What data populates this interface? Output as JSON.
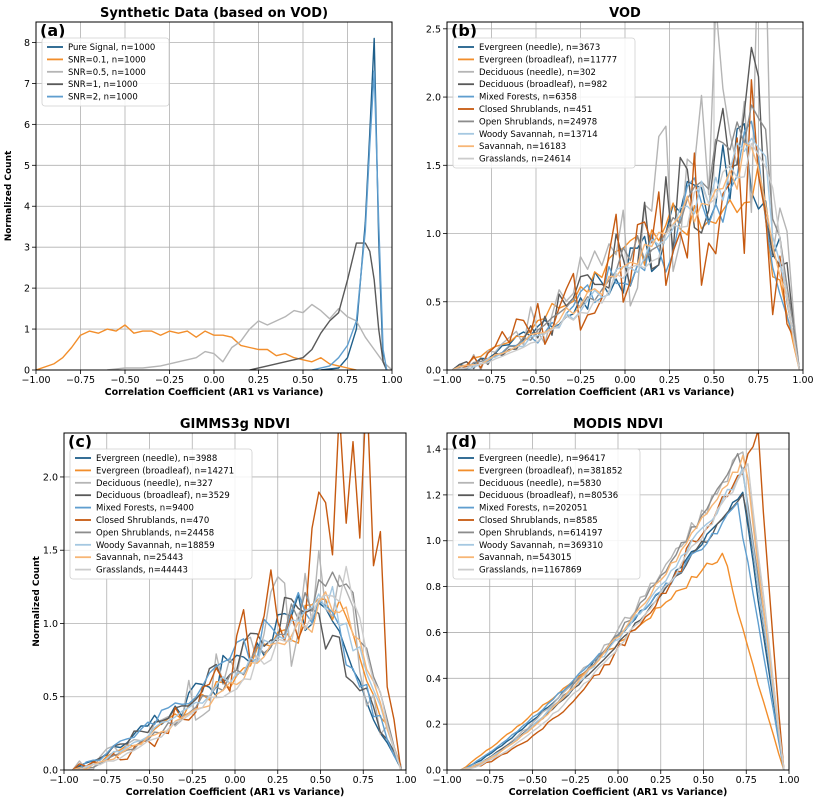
{
  "chart_data": [
    {
      "type": "line",
      "panel": "(a)",
      "title": "Synthetic Data (based on VOD)",
      "xlabel": "Correlation Coefficient (AR1 vs Variance)",
      "ylabel": "Normalized Count",
      "xlim": [
        -1.0,
        1.0
      ],
      "ylim": [
        0,
        8.5
      ],
      "xticks": [
        "−1.00",
        "−0.75",
        "−0.50",
        "−0.25",
        "0.00",
        "0.25",
        "0.50",
        "0.75",
        "1.00"
      ],
      "xtick_values": [
        -1.0,
        -0.75,
        -0.5,
        -0.25,
        0.0,
        0.25,
        0.5,
        0.75,
        1.0
      ],
      "yticks": [
        "0",
        "1",
        "2",
        "3",
        "4",
        "5",
        "6",
        "7",
        "8"
      ],
      "ytick_values": [
        0,
        1,
        2,
        3,
        4,
        5,
        6,
        7,
        8
      ],
      "grid": true,
      "legend_position": "top-left",
      "series": [
        {
          "name": "Pure Signal, n=1000",
          "color": "#1f5f8b",
          "points": [
            [
              0.6,
              0
            ],
            [
              0.7,
              0.05
            ],
            [
              0.75,
              0.3
            ],
            [
              0.8,
              1.0
            ],
            [
              0.85,
              3.6
            ],
            [
              0.875,
              5.8
            ],
            [
              0.9,
              8.1
            ],
            [
              0.925,
              3.2
            ],
            [
              0.95,
              0.2
            ],
            [
              0.97,
              0
            ]
          ]
        },
        {
          "name": "SNR=0.1, n=1000",
          "color": "#f28e2b",
          "points": [
            [
              -1.0,
              0
            ],
            [
              -0.9,
              0.15
            ],
            [
              -0.85,
              0.3
            ],
            [
              -0.8,
              0.55
            ],
            [
              -0.75,
              0.85
            ],
            [
              -0.7,
              0.95
            ],
            [
              -0.65,
              0.9
            ],
            [
              -0.6,
              1.0
            ],
            [
              -0.55,
              0.95
            ],
            [
              -0.5,
              1.1
            ],
            [
              -0.45,
              0.9
            ],
            [
              -0.4,
              0.95
            ],
            [
              -0.35,
              0.95
            ],
            [
              -0.3,
              0.85
            ],
            [
              -0.25,
              0.95
            ],
            [
              -0.2,
              0.9
            ],
            [
              -0.15,
              0.95
            ],
            [
              -0.1,
              0.8
            ],
            [
              -0.05,
              0.95
            ],
            [
              0.0,
              0.85
            ],
            [
              0.05,
              0.85
            ],
            [
              0.1,
              0.8
            ],
            [
              0.15,
              0.6
            ],
            [
              0.2,
              0.55
            ],
            [
              0.25,
              0.5
            ],
            [
              0.3,
              0.5
            ],
            [
              0.35,
              0.35
            ],
            [
              0.4,
              0.4
            ],
            [
              0.45,
              0.3
            ],
            [
              0.5,
              0.25
            ],
            [
              0.55,
              0.2
            ],
            [
              0.6,
              0.3
            ],
            [
              0.65,
              0.15
            ],
            [
              0.7,
              0.1
            ],
            [
              0.75,
              0.05
            ],
            [
              0.8,
              0
            ]
          ]
        },
        {
          "name": "SNR=0.5, n=1000",
          "color": "#b5b5b5",
          "points": [
            [
              -0.6,
              0
            ],
            [
              -0.5,
              0.05
            ],
            [
              -0.4,
              0.05
            ],
            [
              -0.3,
              0.1
            ],
            [
              -0.2,
              0.2
            ],
            [
              -0.1,
              0.3
            ],
            [
              -0.05,
              0.45
            ],
            [
              0.0,
              0.4
            ],
            [
              0.05,
              0.2
            ],
            [
              0.1,
              0.55
            ],
            [
              0.15,
              0.7
            ],
            [
              0.2,
              1.0
            ],
            [
              0.25,
              1.2
            ],
            [
              0.3,
              1.1
            ],
            [
              0.35,
              1.2
            ],
            [
              0.4,
              1.3
            ],
            [
              0.45,
              1.45
            ],
            [
              0.5,
              1.4
            ],
            [
              0.55,
              1.6
            ],
            [
              0.6,
              1.45
            ],
            [
              0.65,
              1.25
            ],
            [
              0.7,
              1.5
            ],
            [
              0.75,
              1.3
            ],
            [
              0.8,
              1.2
            ],
            [
              0.85,
              0.8
            ],
            [
              0.9,
              0.5
            ],
            [
              0.95,
              0.2
            ],
            [
              1.0,
              0
            ]
          ]
        },
        {
          "name": "SNR=1, n=1000",
          "color": "#595959",
          "points": [
            [
              0.2,
              0
            ],
            [
              0.3,
              0.1
            ],
            [
              0.4,
              0.2
            ],
            [
              0.5,
              0.3
            ],
            [
              0.55,
              0.5
            ],
            [
              0.6,
              0.9
            ],
            [
              0.65,
              1.2
            ],
            [
              0.7,
              1.4
            ],
            [
              0.75,
              2.2
            ],
            [
              0.8,
              3.1
            ],
            [
              0.85,
              3.1
            ],
            [
              0.875,
              2.9
            ],
            [
              0.9,
              2.2
            ],
            [
              0.925,
              1.0
            ],
            [
              0.95,
              0.2
            ],
            [
              0.97,
              0
            ]
          ]
        },
        {
          "name": "SNR=2, n=1000",
          "color": "#5f9ecf",
          "points": [
            [
              0.55,
              0
            ],
            [
              0.65,
              0.1
            ],
            [
              0.7,
              0.3
            ],
            [
              0.75,
              0.6
            ],
            [
              0.8,
              1.2
            ],
            [
              0.85,
              3.4
            ],
            [
              0.875,
              5.5
            ],
            [
              0.9,
              7.3
            ],
            [
              0.925,
              3.6
            ],
            [
              0.95,
              0.5
            ],
            [
              0.97,
              0
            ]
          ]
        }
      ]
    },
    {
      "type": "line",
      "panel": "(b)",
      "title": "VOD",
      "xlabel": "Correlation Coefficient (AR1 vs Variance)",
      "ylabel": "",
      "xlim": [
        -1.0,
        1.0
      ],
      "ylim": [
        0,
        2.55
      ],
      "xticks": [
        "−1.00",
        "−0.75",
        "−0.50",
        "−0.25",
        "0.00",
        "0.25",
        "0.50",
        "0.75",
        "1.00"
      ],
      "xtick_values": [
        -1.0,
        -0.75,
        -0.5,
        -0.25,
        0.0,
        0.25,
        0.5,
        0.75,
        1.0
      ],
      "yticks": [
        "0.0",
        "0.5",
        "1.0",
        "1.5",
        "2.0",
        "2.5"
      ],
      "ytick_values": [
        0,
        0.5,
        1.0,
        1.5,
        2.0,
        2.5
      ],
      "grid": true,
      "legend_position": "top-left",
      "series": [
        {
          "name": "Evergreen (needle), n=3673",
          "color": "#1f5f8b"
        },
        {
          "name": "Evergreen (broadleaf), n=11777",
          "color": "#f28e2b"
        },
        {
          "name": "Deciduous (needle), n=302",
          "color": "#b5b5b5"
        },
        {
          "name": "Deciduous (broadleaf), n=982",
          "color": "#595959"
        },
        {
          "name": "Mixed Forests, n=6358",
          "color": "#5f9ecf"
        },
        {
          "name": "Closed Shrublands, n=451",
          "color": "#c65a11"
        },
        {
          "name": "Open Shrublands, n=24978",
          "color": "#8c8c8c"
        },
        {
          "name": "Woody Savannah, n=13714",
          "color": "#a5c8e1"
        },
        {
          "name": "Savannah, n=16183",
          "color": "#f7b676"
        },
        {
          "name": "Grasslands, n=24614",
          "color": "#cccccc"
        }
      ]
    },
    {
      "type": "line",
      "panel": "(c)",
      "title": "GIMMS3g NDVI",
      "xlabel": "Correlation Coefficient (AR1 vs Variance)",
      "ylabel": "Normalized Count",
      "xlim": [
        -1.0,
        1.0
      ],
      "ylim": [
        0,
        2.3
      ],
      "xticks": [
        "−1.00",
        "−0.75",
        "−0.50",
        "−0.25",
        "0.00",
        "0.25",
        "0.50",
        "0.75",
        "1.00"
      ],
      "xtick_values": [
        -1.0,
        -0.75,
        -0.5,
        -0.25,
        0.0,
        0.25,
        0.5,
        0.75,
        1.0
      ],
      "yticks": [
        "0.0",
        "0.5",
        "1.0",
        "1.5",
        "2.0"
      ],
      "ytick_values": [
        0,
        0.5,
        1.0,
        1.5,
        2.0
      ],
      "grid": true,
      "legend_position": "top-left",
      "series": [
        {
          "name": "Evergreen (needle), n=3988",
          "color": "#1f5f8b"
        },
        {
          "name": "Evergreen (broadleaf), n=14271",
          "color": "#f28e2b"
        },
        {
          "name": "Deciduous (needle), n=327",
          "color": "#b5b5b5"
        },
        {
          "name": "Deciduous (broadleaf), n=3529",
          "color": "#595959"
        },
        {
          "name": "Mixed Forests, n=9400",
          "color": "#5f9ecf"
        },
        {
          "name": "Closed Shrublands, n=470",
          "color": "#c65a11"
        },
        {
          "name": "Open Shrublands, n=24458",
          "color": "#8c8c8c"
        },
        {
          "name": "Woody Savannah, n=18859",
          "color": "#a5c8e1"
        },
        {
          "name": "Savannah, n=25443",
          "color": "#f7b676"
        },
        {
          "name": "Grasslands, n=44443",
          "color": "#cccccc"
        }
      ]
    },
    {
      "type": "line",
      "panel": "(d)",
      "title": "MODIS NDVI",
      "xlabel": "Correlation Coefficient (AR1 vs Variance)",
      "ylabel": "",
      "xlim": [
        -1.0,
        1.0
      ],
      "ylim": [
        0,
        1.47
      ],
      "xticks": [
        "−1.00",
        "−0.75",
        "−0.50",
        "−0.25",
        "0.00",
        "0.25",
        "0.50",
        "0.75",
        "1.00"
      ],
      "xtick_values": [
        -1.0,
        -0.75,
        -0.5,
        -0.25,
        0.0,
        0.25,
        0.5,
        0.75,
        1.0
      ],
      "yticks": [
        "0.0",
        "0.2",
        "0.4",
        "0.6",
        "0.8",
        "1.0",
        "1.2",
        "1.4"
      ],
      "ytick_values": [
        0,
        0.2,
        0.4,
        0.6,
        0.8,
        1.0,
        1.2,
        1.4
      ],
      "grid": true,
      "legend_position": "top-left",
      "series": [
        {
          "name": "Evergreen (needle), n=96417",
          "color": "#1f5f8b"
        },
        {
          "name": "Evergreen (broadleaf), n=381852",
          "color": "#f28e2b"
        },
        {
          "name": "Deciduous (needle), n=5830",
          "color": "#b5b5b5"
        },
        {
          "name": "Deciduous (broadleaf), n=80536",
          "color": "#595959"
        },
        {
          "name": "Mixed Forests, n=202051",
          "color": "#5f9ecf"
        },
        {
          "name": "Closed Shrublands, n=8585",
          "color": "#c65a11"
        },
        {
          "name": "Open Shrublands, n=614197",
          "color": "#8c8c8c"
        },
        {
          "name": "Woody Savannah, n=369310",
          "color": "#a5c8e1"
        },
        {
          "name": "Savannah, n=543015",
          "color": "#f7b676"
        },
        {
          "name": "Grasslands, n=1167869",
          "color": "#cccccc"
        }
      ]
    }
  ]
}
